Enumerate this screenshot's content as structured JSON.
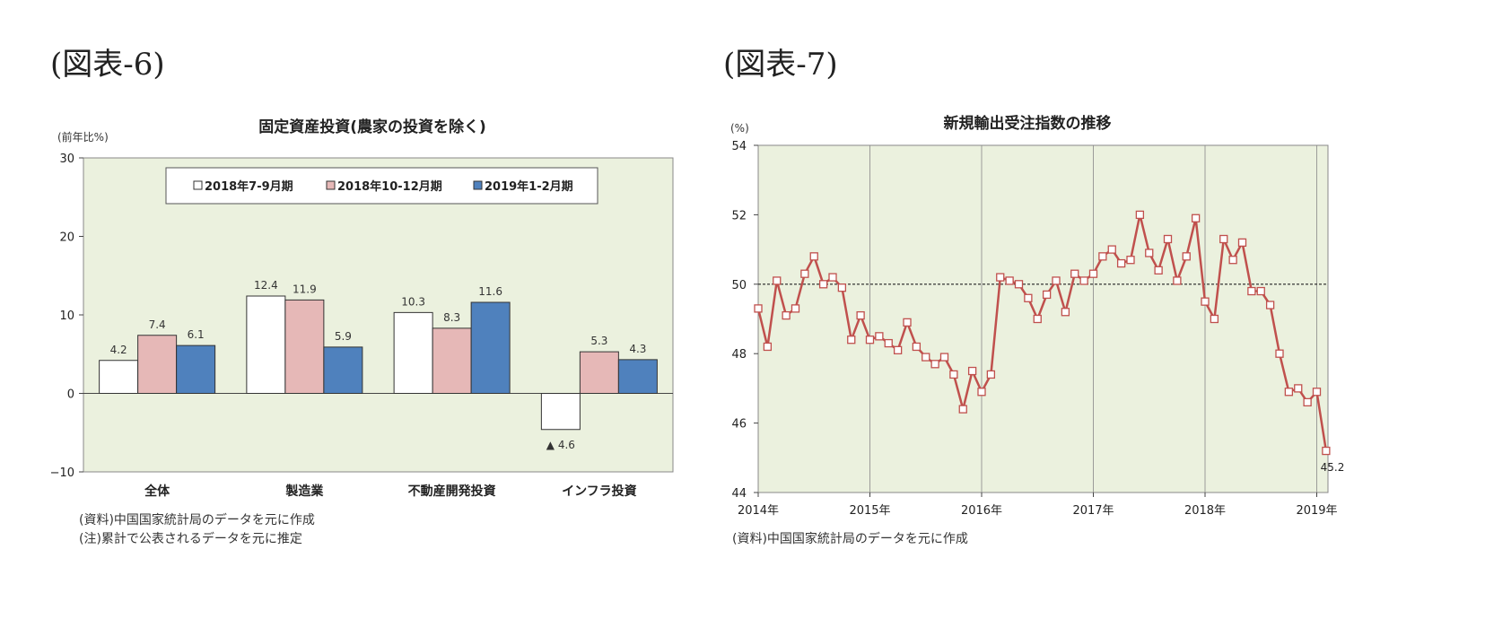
{
  "figures": {
    "left_label": "(図表-6)",
    "right_label": "(図表-7)"
  },
  "chart_data": [
    {
      "type": "bar",
      "title": "固定資産投資(農家の投資を除く)",
      "unit_label": "(前年比%)",
      "categories": [
        "全体",
        "製造業",
        "不動産開発投資",
        "インフラ投資"
      ],
      "series": [
        {
          "name": "2018年7-9月期",
          "values": [
            4.2,
            12.4,
            10.3,
            -4.6
          ],
          "color": "#ffffff"
        },
        {
          "name": "2018年10-12月期",
          "values": [
            7.4,
            11.9,
            8.3,
            5.3
          ],
          "color": "#e6b8b7"
        },
        {
          "name": "2019年1-2月期",
          "values": [
            6.1,
            5.9,
            11.6,
            4.3
          ],
          "color": "#4f81bd"
        }
      ],
      "data_labels": [
        [
          "4.2",
          "12.4",
          "10.3",
          "▲ 4.6"
        ],
        [
          "7.4",
          "11.9",
          "8.3",
          "5.3"
        ],
        [
          "6.1",
          "5.9",
          "11.6",
          "4.3"
        ]
      ],
      "ylim": [
        -10,
        30
      ],
      "yticks": [
        -10,
        0,
        10,
        20,
        30
      ],
      "ytick_labels": [
        "−10",
        "0",
        "10",
        "20",
        "30"
      ],
      "legend_position": "top-center",
      "plot_background": "#ebf1de",
      "notes": [
        "(資料)中国国家統計局のデータを元に作成",
        "(注)累計で公表されるデータを元に推定"
      ]
    },
    {
      "type": "line",
      "title": "新規輸出受注指数の推移",
      "unit_label": "(%)",
      "x_start": "2014-01",
      "x_frequency": "monthly",
      "values": [
        49.3,
        48.2,
        50.1,
        49.1,
        49.3,
        50.3,
        50.8,
        50.0,
        50.2,
        49.9,
        48.4,
        49.1,
        48.4,
        48.5,
        48.3,
        48.1,
        48.9,
        48.2,
        47.9,
        47.7,
        47.9,
        47.4,
        46.4,
        47.5,
        46.9,
        47.4,
        50.2,
        50.1,
        50.0,
        49.6,
        49.0,
        49.7,
        50.1,
        49.2,
        50.3,
        50.1,
        50.3,
        50.8,
        51.0,
        50.6,
        50.7,
        52.0,
        50.9,
        50.4,
        51.3,
        50.1,
        50.8,
        51.9,
        49.5,
        49.0,
        51.3,
        50.7,
        51.2,
        49.8,
        49.8,
        49.4,
        48.0,
        46.9,
        47.0,
        46.6,
        46.9,
        45.2
      ],
      "last_value_label": "45.2",
      "xtick_labels": [
        "2014年",
        "2015年",
        "2016年",
        "2017年",
        "2018年",
        "2019年"
      ],
      "ylim": [
        44,
        54
      ],
      "yticks": [
        44,
        46,
        48,
        50,
        52,
        54
      ],
      "ytick_labels": [
        "44",
        "46",
        "48",
        "50",
        "52",
        "54"
      ],
      "reference_line": 50,
      "line_color": "#c0504d",
      "marker": "square-hollow",
      "plot_background": "#ebf1de",
      "notes": [
        "(資料)中国国家統計局のデータを元に作成"
      ]
    }
  ]
}
